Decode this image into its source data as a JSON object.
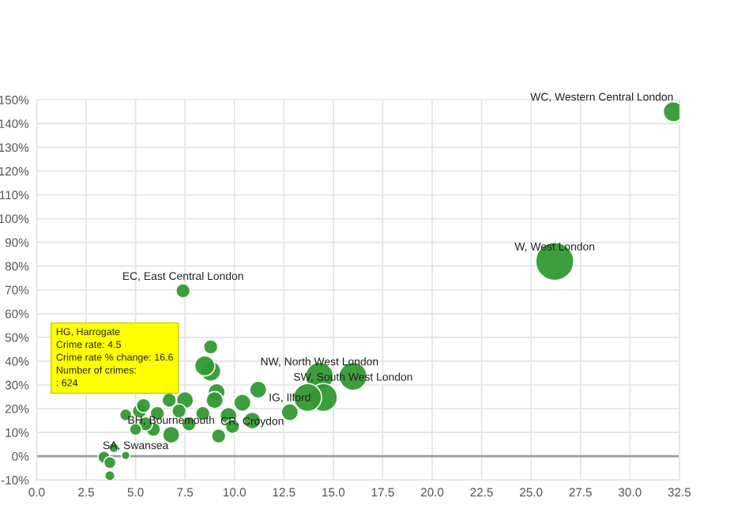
{
  "chart_data": {
    "type": "bubble",
    "x": [
      32.2,
      26.2,
      7.4,
      8.8,
      16.0,
      14.3,
      14.5,
      13.7,
      12.8,
      11.2,
      10.9,
      10.4,
      9.7,
      9.9,
      9.1,
      9.0,
      9.2,
      8.8,
      8.5,
      8.4,
      7.7,
      7.5,
      7.2,
      6.8,
      6.7,
      6.1,
      5.9,
      5.5,
      5.2,
      5.0,
      4.5,
      5.4,
      3.4,
      3.7,
      3.7,
      3.9,
      4.5
    ],
    "series": [
      {
        "color": "#339933",
        "values": [
          145,
          82,
          69.6,
          46,
          33.6,
          33.6,
          24.7,
          24.7,
          18.5,
          28,
          15,
          22.5,
          17,
          12.5,
          27,
          23.6,
          8.5,
          35.8,
          38,
          18,
          13.6,
          23.6,
          19,
          9,
          23.6,
          18,
          11.3,
          13.6,
          19,
          11.3,
          17.4,
          21.3,
          -0.4,
          -2.7,
          -8.2,
          3.6,
          0.3
        ],
        "sizes": [
          0.28,
          1,
          0.14,
          0.14,
          0.54,
          0.54,
          0.54,
          0.54,
          0.2,
          0.2,
          0.2,
          0.2,
          0.2,
          0.14,
          0.2,
          0.2,
          0.14,
          0.28,
          0.28,
          0.14,
          0.14,
          0.2,
          0.14,
          0.2,
          0.14,
          0.14,
          0.14,
          0.14,
          0.14,
          0.1,
          0.1,
          0.14,
          0.1,
          0.1,
          0.07,
          0.07,
          0.05
        ]
      }
    ],
    "xlim": [
      0,
      32.5
    ],
    "xticks": [
      {
        "value": 0,
        "label": "0.0"
      },
      {
        "value": 2.5,
        "label": "2.5"
      },
      {
        "value": 5,
        "label": "5.0"
      },
      {
        "value": 7.5,
        "label": "7.5"
      },
      {
        "value": 10,
        "label": "10.0"
      },
      {
        "value": 12.5,
        "label": "12.5"
      },
      {
        "value": 15,
        "label": "15.0"
      },
      {
        "value": 17.5,
        "label": "17.5"
      },
      {
        "value": 20,
        "label": "20.0"
      },
      {
        "value": 22.5,
        "label": "22.5"
      },
      {
        "value": 25,
        "label": "25.0"
      },
      {
        "value": 27.5,
        "label": "27.5"
      },
      {
        "value": 30,
        "label": "30.0"
      },
      {
        "value": 32.5,
        "label": "32.5"
      }
    ],
    "ylim": [
      -10,
      150
    ],
    "yticks": [
      {
        "value": -10,
        "label": "-10%"
      },
      {
        "value": 0,
        "label": "0%"
      },
      {
        "value": 10,
        "label": "10%"
      },
      {
        "value": 20,
        "label": "20%"
      },
      {
        "value": 30,
        "label": "30%"
      },
      {
        "value": 40,
        "label": "40%"
      },
      {
        "value": 50,
        "label": "50%"
      },
      {
        "value": 60,
        "label": "60%"
      },
      {
        "value": 70,
        "label": "70%"
      },
      {
        "value": 80,
        "label": "80%"
      },
      {
        "value": 90,
        "label": "90%"
      },
      {
        "value": 100,
        "label": "100%"
      },
      {
        "value": 110,
        "label": "110%"
      },
      {
        "value": 120,
        "label": "120%"
      },
      {
        "value": 130,
        "label": "130%"
      },
      {
        "value": 140,
        "label": "140%"
      },
      {
        "value": 150,
        "label": "150%"
      }
    ],
    "grid": true,
    "ref_lines": [
      {
        "axis": "y",
        "value": 0,
        "color": "#999999"
      }
    ],
    "annotations": [
      {
        "text": "WC, Western Central London",
        "x": 32.2,
        "y": 145
      },
      {
        "text": "W, West London",
        "x": 26.2,
        "y": 82
      },
      {
        "text": "EC, East Central London",
        "x": 7.4,
        "y": 69.6
      },
      {
        "text": "NW, North West London",
        "x": 14.3,
        "y": 33.6
      },
      {
        "text": "SW, South West London",
        "x": 16.0,
        "y": 33.6
      },
      {
        "text": "IG, Ilford",
        "x": 12.8,
        "y": 18.5
      },
      {
        "text": "CR, Croydon",
        "x": 10.9,
        "y": 15
      },
      {
        "text": "BH, Bournemouth",
        "x": 6.8,
        "y": 9
      },
      {
        "text": "SA, Swansea",
        "x": 5.0,
        "y": 11.3
      },
      "HG, Harrogate\nCrime rate: 4.5\nCrime rate % change: 16.6\nNumber of crimes:\n: 624"
    ]
  }
}
